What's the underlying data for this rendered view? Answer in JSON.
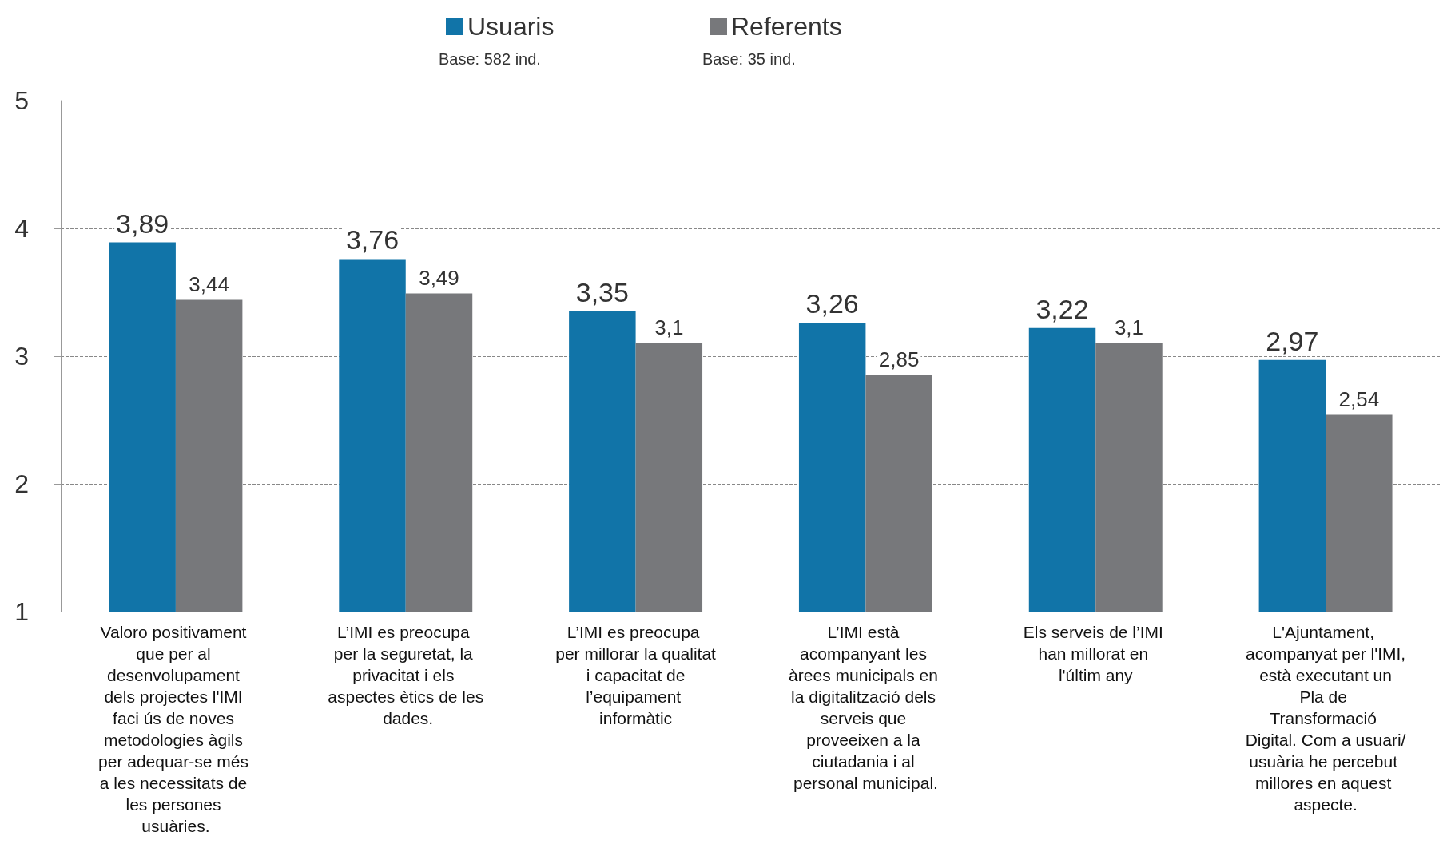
{
  "chart_data": {
    "type": "bar",
    "categories": [
      "Valoro positivament que per al desenvolupament dels projectes l'IMI faci ús de noves metodologies àgils per adequar-se més a les necessitats de les persones usuàries.",
      "L’IMI es preocupa per la seguretat, la privacitat i els aspectes ètics de les dades.",
      "L’IMI es preocupa per millorar la qualitat i capacitat de l’equipament informàtic",
      "L’IMI està acompanyant les àrees municipals en la digitalització dels serveis que proveeixen a la ciutadania i al personal municipal.",
      "Els serveis de l’IMI han millorat en l'últim any",
      "L'Ajuntament, acompanyat per l'IMI, està executant un Pla de Transformació Digital. Com a usuari/usuària he percebut millores en aquest aspecte."
    ],
    "series": [
      {
        "name": "Usuaris",
        "color": "#1174a8",
        "values": [
          3.89,
          3.76,
          3.35,
          3.26,
          3.22,
          2.97
        ],
        "value_labels": [
          "3,89",
          "3,76",
          "3,35",
          "3,26",
          "3,22",
          "2,97"
        ]
      },
      {
        "name": "Referents",
        "color": "#77787b",
        "values": [
          3.44,
          3.49,
          3.1,
          2.85,
          3.1,
          2.54
        ],
        "value_labels": [
          "3,44",
          "3,49",
          "3,1",
          "2,85",
          "3,1",
          "2,54"
        ]
      }
    ],
    "annotations": [
      "Base: 582 ind.",
      "Base: 35 ind."
    ],
    "ylim": [
      1,
      5
    ],
    "yticks": [
      1,
      2,
      3,
      4,
      5
    ],
    "grid": "y",
    "legend": "top"
  }
}
